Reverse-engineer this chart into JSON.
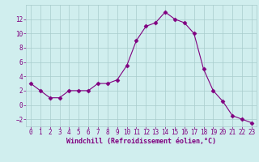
{
  "x": [
    0,
    1,
    2,
    3,
    4,
    5,
    6,
    7,
    8,
    9,
    10,
    11,
    12,
    13,
    14,
    15,
    16,
    17,
    18,
    19,
    20,
    21,
    22,
    23
  ],
  "y": [
    3,
    2,
    1,
    1,
    2,
    2,
    2,
    3,
    3,
    3.5,
    5.5,
    9,
    11,
    11.5,
    13,
    12,
    11.5,
    10,
    5,
    2,
    0.5,
    -1.5,
    -2,
    -2.5
  ],
  "line_color": "#800080",
  "marker": "D",
  "marker_size": 2.5,
  "bg_color": "#d0eeee",
  "grid_color": "#a8cccc",
  "xlabel": "Windchill (Refroidissement éolien,°C)",
  "ylim": [
    -3,
    14
  ],
  "yticks": [
    -2,
    0,
    2,
    4,
    6,
    8,
    10,
    12
  ],
  "xticks": [
    0,
    1,
    2,
    3,
    4,
    5,
    6,
    7,
    8,
    9,
    10,
    11,
    12,
    13,
    14,
    15,
    16,
    17,
    18,
    19,
    20,
    21,
    22,
    23
  ],
  "tick_color": "#800080",
  "label_color": "#800080",
  "label_fontsize": 6.0,
  "tick_fontsize": 5.5,
  "xlim_left": -0.5,
  "xlim_right": 23.5
}
